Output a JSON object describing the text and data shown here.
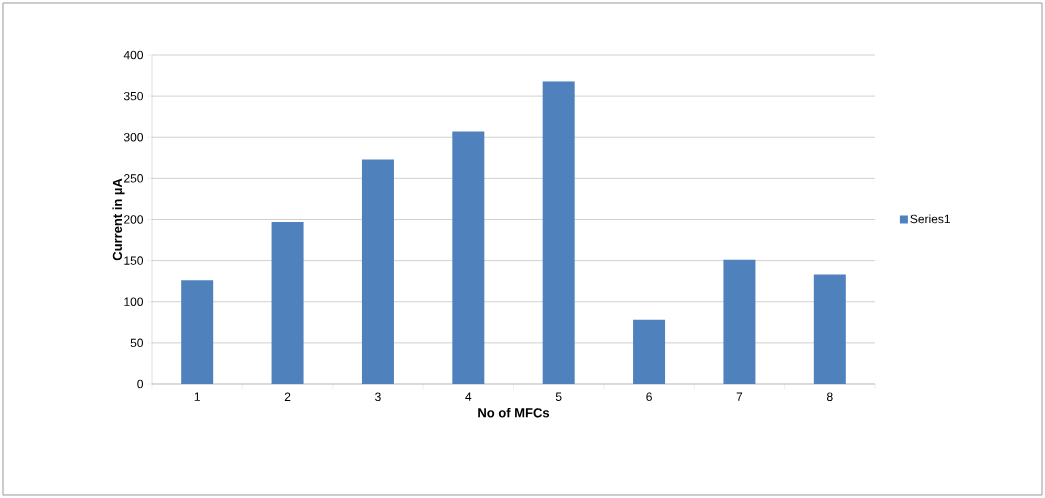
{
  "chart_data": {
    "type": "bar",
    "xlabel": "No of MFCs",
    "ylabel": "Current in µA",
    "categories": [
      "1",
      "2",
      "3",
      "4",
      "5",
      "6",
      "7",
      "8"
    ],
    "series": [
      {
        "name": "Series1",
        "color": "#4f81bd",
        "values": [
          126,
          197,
          273,
          307,
          368,
          78,
          151,
          133
        ]
      }
    ],
    "ylim": [
      0,
      400
    ],
    "yticks": [
      0,
      50,
      100,
      150,
      200,
      250,
      300,
      350,
      400
    ],
    "grid": "y",
    "legend": "right"
  }
}
